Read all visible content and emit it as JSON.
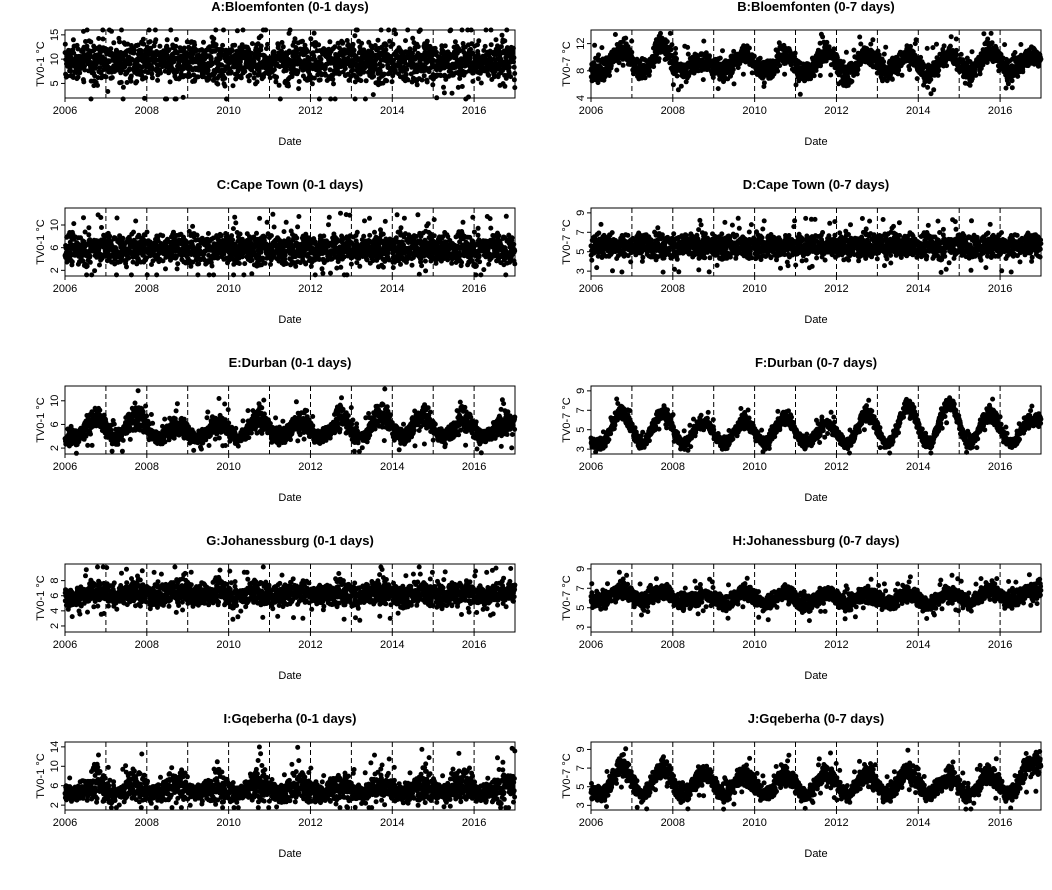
{
  "chart_data": [
    {
      "type": "scatter",
      "panel": "A",
      "title": "A:Bloemfonten (0-1 days)",
      "xlabel": "Date",
      "ylabel": "TV0-1 °C",
      "xlim": [
        "2006-01-01",
        "2017-01-01"
      ],
      "ylim": [
        2,
        16
      ],
      "yticks": [
        5,
        10,
        15
      ],
      "xticks": [
        2006,
        2008,
        2010,
        2012,
        2014,
        2016
      ],
      "vlines": [
        2006,
        2007,
        2008,
        2009,
        2010,
        2011,
        2012,
        2013,
        2014,
        2015,
        2016
      ],
      "series": [
        {
          "center": [
            9.4,
            9.6,
            9.4,
            9.6,
            9.5,
            9.6,
            9.4,
            9.6,
            9.4,
            9.6,
            9.4,
            9.6,
            9.5,
            9.6,
            9.4,
            9.6,
            9.5,
            9.6,
            9.4,
            9.6,
            9.5,
            9.6
          ],
          "spread": [
            2.6,
            3.2,
            2.8,
            3.2,
            2.7,
            3.2,
            2.8,
            3.2,
            2.7,
            3.2,
            2.8,
            3.2,
            2.7,
            3.2,
            2.8,
            3.2,
            2.7,
            3.2,
            2.8,
            3.2,
            2.7,
            3.2
          ],
          "range": [
            1.8,
            16
          ]
        }
      ]
    },
    {
      "type": "scatter",
      "panel": "B",
      "title": "B:Bloemfonten (0-7 days)",
      "xlabel": "Date",
      "ylabel": "TV0-7 °C",
      "xlim": [
        "2006-01-01",
        "2017-01-01"
      ],
      "ylim": [
        4,
        14
      ],
      "yticks": [
        4,
        8,
        12
      ],
      "xticks": [
        2006,
        2008,
        2010,
        2012,
        2014,
        2016
      ],
      "vlines": [
        2006,
        2007,
        2008,
        2009,
        2010,
        2011,
        2012,
        2013,
        2014,
        2015,
        2016
      ],
      "series": [
        {
          "center": [
            8.0,
            10.8,
            8.0,
            11.5,
            8.0,
            9.5,
            8.0,
            10.5,
            7.8,
            10.5,
            7.5,
            10.8,
            7.5,
            10.5,
            8.0,
            10.5,
            7.5,
            10.5,
            7.8,
            10.8,
            7.8,
            10.0
          ],
          "spread": [
            1.2,
            1.0,
            1.2,
            1.2,
            1.2,
            1.0,
            1.2,
            1.0,
            1.2,
            1.0,
            1.2,
            1.0,
            1.2,
            1.0,
            1.2,
            1.0,
            1.2,
            1.0,
            1.2,
            1.0,
            1.2,
            1.0
          ],
          "range": [
            4,
            13.5
          ]
        }
      ]
    },
    {
      "type": "scatter",
      "panel": "C",
      "title": "C:Cape Town (0-1 days)",
      "xlabel": "Date",
      "ylabel": "TV0-1 °C",
      "xlim": [
        "2006-01-01",
        "2017-01-01"
      ],
      "ylim": [
        1,
        13
      ],
      "yticks": [
        2,
        6,
        10
      ],
      "xticks": [
        2006,
        2008,
        2010,
        2012,
        2014,
        2016
      ],
      "vlines": [
        2006,
        2007,
        2008,
        2009,
        2010,
        2011,
        2012,
        2013,
        2014,
        2015,
        2016
      ],
      "series": [
        {
          "center": [
            5.8,
            5.8,
            5.8,
            5.8,
            5.8,
            5.8,
            5.8,
            5.8,
            5.8,
            5.8,
            5.8,
            5.8,
            5.8,
            5.8,
            5.8,
            5.8,
            5.8,
            5.8,
            5.8,
            5.8,
            5.8,
            5.8
          ],
          "spread": [
            1.9,
            2.0,
            1.9,
            2.0,
            1.9,
            2.0,
            1.9,
            2.0,
            1.9,
            2.0,
            1.9,
            2.0,
            1.9,
            2.0,
            1.9,
            2.0,
            1.9,
            2.0,
            1.9,
            2.0,
            1.9,
            2.0
          ],
          "range": [
            1.2,
            12.7
          ]
        }
      ]
    },
    {
      "type": "scatter",
      "panel": "D",
      "title": "D:Cape Town (0-7 days)",
      "xlabel": "Date",
      "ylabel": "TV0-7 °C",
      "xlim": [
        "2006-01-01",
        "2017-01-01"
      ],
      "ylim": [
        2.5,
        9.5
      ],
      "yticks": [
        3,
        5,
        7,
        9
      ],
      "xticks": [
        2006,
        2008,
        2010,
        2012,
        2014,
        2016
      ],
      "vlines": [
        2006,
        2007,
        2008,
        2009,
        2010,
        2011,
        2012,
        2013,
        2014,
        2015,
        2016
      ],
      "series": [
        {
          "center": [
            5.6,
            5.6,
            5.6,
            5.6,
            5.6,
            5.6,
            5.6,
            5.6,
            5.6,
            5.6,
            5.6,
            5.6,
            5.6,
            5.6,
            5.6,
            5.6,
            5.6,
            5.6,
            5.6,
            5.6,
            5.6,
            5.6
          ],
          "spread": [
            0.9,
            0.9,
            0.9,
            0.9,
            0.9,
            0.9,
            0.9,
            0.9,
            0.9,
            0.9,
            0.9,
            0.9,
            0.9,
            0.9,
            0.9,
            0.9,
            0.9,
            0.9,
            0.9,
            0.9,
            0.9,
            0.9
          ],
          "range": [
            2.6,
            9.0
          ]
        }
      ]
    },
    {
      "type": "scatter",
      "panel": "E",
      "title": "E:Durban (0-1 days)",
      "xlabel": "Date",
      "ylabel": "TV0-1 °C",
      "xlim": [
        "2006-01-01",
        "2017-01-01"
      ],
      "ylim": [
        1,
        12.5
      ],
      "yticks": [
        2,
        6,
        10
      ],
      "xticks": [
        2006,
        2008,
        2010,
        2012,
        2014,
        2016
      ],
      "vlines": [
        2006,
        2007,
        2008,
        2009,
        2010,
        2011,
        2012,
        2013,
        2014,
        2015,
        2016
      ],
      "series": [
        {
          "center": [
            3.8,
            7.0,
            3.8,
            7.5,
            3.8,
            5.8,
            3.8,
            6.0,
            3.8,
            7.0,
            3.8,
            6.2,
            3.8,
            7.0,
            3.8,
            7.8,
            3.8,
            7.5,
            3.8,
            7.0,
            3.8,
            6.2
          ],
          "spread": [
            0.9,
            1.5,
            0.9,
            1.6,
            0.9,
            1.3,
            0.9,
            1.4,
            0.9,
            1.5,
            0.9,
            1.3,
            0.9,
            1.5,
            0.9,
            1.6,
            0.9,
            1.6,
            0.9,
            1.5,
            0.9,
            1.4
          ],
          "range": [
            0.9,
            12
          ]
        }
      ]
    },
    {
      "type": "scatter",
      "panel": "F",
      "title": "F:Durban (0-7 days)",
      "xlabel": "Date",
      "ylabel": "TV0-7 °C",
      "xlim": [
        "2006-01-01",
        "2017-01-01"
      ],
      "ylim": [
        2.5,
        9.5
      ],
      "yticks": [
        3,
        5,
        7,
        9
      ],
      "xticks": [
        2006,
        2008,
        2010,
        2012,
        2014,
        2016
      ],
      "vlines": [
        2006,
        2007,
        2008,
        2009,
        2010,
        2011,
        2012,
        2013,
        2014,
        2015,
        2016
      ],
      "series": [
        {
          "center": [
            3.6,
            6.8,
            3.6,
            6.8,
            3.6,
            5.8,
            3.6,
            5.8,
            3.6,
            6.2,
            3.6,
            5.6,
            3.6,
            6.6,
            3.6,
            7.3,
            3.6,
            7.6,
            3.6,
            6.7,
            3.6,
            6.0
          ],
          "spread": [
            0.4,
            0.6,
            0.4,
            0.6,
            0.4,
            0.5,
            0.4,
            0.5,
            0.4,
            0.6,
            0.4,
            0.5,
            0.4,
            0.6,
            0.4,
            0.6,
            0.4,
            0.6,
            0.4,
            0.6,
            0.4,
            0.5
          ],
          "range": [
            2.6,
            9.0
          ]
        }
      ]
    },
    {
      "type": "scatter",
      "panel": "G",
      "title": "G:Johanessburg (0-1 days)",
      "xlabel": "Date",
      "ylabel": "TV0-1 °C",
      "xlim": [
        "2006-01-01",
        "2017-01-01"
      ],
      "ylim": [
        1.2,
        10.2
      ],
      "yticks": [
        2,
        4,
        6,
        8
      ],
      "xticks": [
        2006,
        2008,
        2010,
        2012,
        2014,
        2016
      ],
      "vlines": [
        2006,
        2007,
        2008,
        2009,
        2010,
        2011,
        2012,
        2013,
        2014,
        2015,
        2016
      ],
      "series": [
        {
          "center": [
            5.8,
            6.6,
            6.0,
            6.6,
            5.9,
            6.5,
            6.0,
            6.6,
            5.9,
            6.5,
            6.0,
            6.6,
            5.9,
            6.5,
            6.0,
            6.6,
            5.9,
            6.5,
            6.0,
            6.6,
            5.9,
            6.5
          ],
          "spread": [
            1.0,
            1.2,
            1.1,
            1.2,
            1.0,
            1.2,
            1.1,
            1.2,
            1.0,
            1.2,
            1.1,
            1.2,
            1.0,
            1.2,
            1.1,
            1.2,
            1.0,
            1.2,
            1.1,
            1.2,
            1.0,
            1.2
          ],
          "range": [
            1.4,
            9.8
          ]
        }
      ]
    },
    {
      "type": "scatter",
      "panel": "H",
      "title": "H:Johanessburg (0-7 days)",
      "xlabel": "Date",
      "ylabel": "TV0-7 °C",
      "xlim": [
        "2006-01-01",
        "2017-01-01"
      ],
      "ylim": [
        2.5,
        9.5
      ],
      "yticks": [
        3,
        5,
        7,
        9
      ],
      "xticks": [
        2006,
        2008,
        2010,
        2012,
        2014,
        2016
      ],
      "vlines": [
        2006,
        2007,
        2008,
        2009,
        2010,
        2011,
        2012,
        2013,
        2014,
        2015,
        2016
      ],
      "series": [
        {
          "center": [
            5.8,
            6.8,
            5.6,
            6.6,
            5.6,
            6.3,
            5.5,
            6.6,
            5.5,
            6.5,
            5.4,
            6.4,
            5.5,
            6.4,
            5.5,
            6.5,
            5.4,
            6.5,
            5.6,
            6.8,
            5.8,
            6.6
          ],
          "spread": [
            0.6,
            0.6,
            0.6,
            0.6,
            0.6,
            0.6,
            0.6,
            0.6,
            0.6,
            0.6,
            0.6,
            0.6,
            0.6,
            0.6,
            0.6,
            0.6,
            0.6,
            0.6,
            0.6,
            0.6,
            0.6,
            0.6
          ],
          "range": [
            2.6,
            9.3
          ]
        }
      ]
    },
    {
      "type": "scatter",
      "panel": "I",
      "title": "I:Gqeberha (0-1 days)",
      "xlabel": "Date",
      "ylabel": "TV0-1 °C",
      "xlim": [
        "2006-01-01",
        "2017-01-01"
      ],
      "ylim": [
        1,
        15
      ],
      "yticks": [
        2,
        6,
        10,
        14
      ],
      "xticks": [
        2006,
        2008,
        2010,
        2012,
        2014,
        2016
      ],
      "vlines": [
        2006,
        2007,
        2008,
        2009,
        2010,
        2011,
        2012,
        2013,
        2014,
        2015,
        2016
      ],
      "series": [
        {
          "center": [
            4.4,
            6.5,
            4.4,
            6.2,
            4.4,
            6.4,
            4.4,
            6.0,
            4.4,
            6.4,
            4.4,
            6.2,
            4.4,
            6.0,
            4.4,
            6.3,
            4.4,
            6.0,
            4.4,
            6.3,
            4.4,
            6.2
          ],
          "spread": [
            1.2,
            2.6,
            1.2,
            2.5,
            1.2,
            2.7,
            1.2,
            2.4,
            1.2,
            2.6,
            1.2,
            2.5,
            1.2,
            2.4,
            1.2,
            2.6,
            1.2,
            2.4,
            1.2,
            2.7,
            1.2,
            2.5
          ],
          "range": [
            1.5,
            14.4
          ]
        }
      ]
    },
    {
      "type": "scatter",
      "panel": "J",
      "title": "J:Gqeberha (0-7 days)",
      "xlabel": "Date",
      "ylabel": "TV0-7 °C",
      "xlim": [
        "2006-01-01",
        "2017-01-01"
      ],
      "ylim": [
        2.5,
        9.8
      ],
      "yticks": [
        3,
        5,
        7,
        9
      ],
      "xticks": [
        2006,
        2008,
        2010,
        2012,
        2014,
        2016
      ],
      "vlines": [
        2006,
        2007,
        2008,
        2009,
        2010,
        2011,
        2012,
        2013,
        2014,
        2015,
        2016
      ],
      "series": [
        {
          "center": [
            4.2,
            7.2,
            4.2,
            6.9,
            4.2,
            6.4,
            4.2,
            6.3,
            4.2,
            6.3,
            4.2,
            6.4,
            4.2,
            6.3,
            4.2,
            6.5,
            4.2,
            6.0,
            4.2,
            6.3,
            4.2,
            7.5
          ],
          "spread": [
            0.6,
            0.9,
            0.6,
            0.9,
            0.6,
            0.8,
            0.6,
            0.8,
            0.6,
            0.8,
            0.6,
            0.8,
            0.6,
            0.8,
            0.6,
            0.8,
            0.6,
            0.8,
            0.6,
            0.8,
            0.6,
            1.0
          ],
          "range": [
            2.6,
            9.6
          ]
        }
      ]
    }
  ]
}
